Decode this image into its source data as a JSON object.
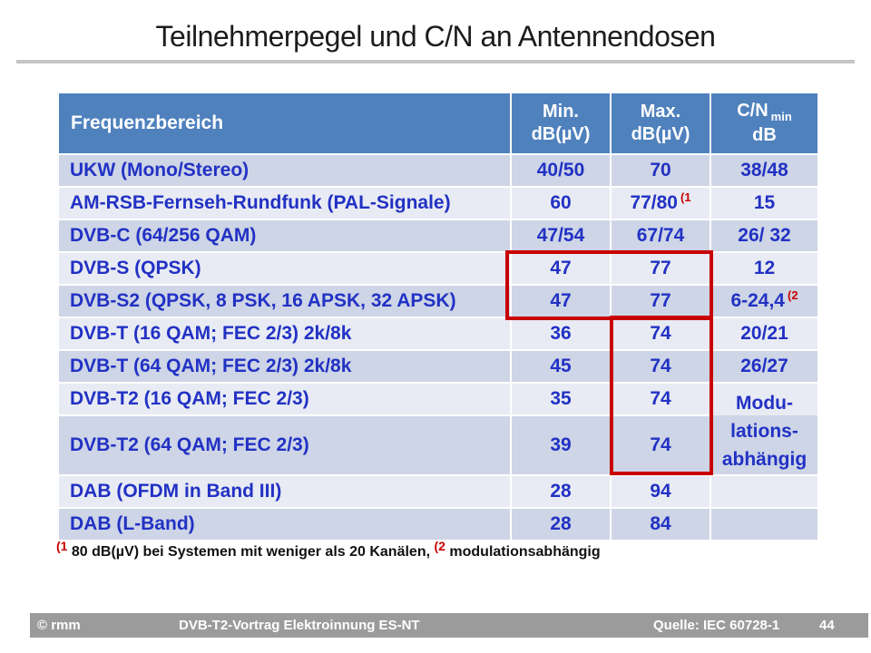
{
  "title": "Teilnehmerpegel und C/N an Antennendosen",
  "table": {
    "headers": {
      "col1": "Frequenzbereich",
      "col2_line1": "Min.",
      "col2_line2": "dB(µV)",
      "col3_line1": "Max.",
      "col3_line2": "dB(µV)",
      "col4_main": "C/N",
      "col4_sub": "min",
      "col4_line2": "dB"
    },
    "rows": [
      {
        "label": "UKW (Mono/Stereo)",
        "min": "40/50",
        "max": "70",
        "cn": "38/48"
      },
      {
        "label": "AM-RSB-Fernseh-Rundfunk (PAL-Signale)",
        "min": "60",
        "max": "77/80",
        "max_note": "(1",
        "cn": "15"
      },
      {
        "label": "DVB-C (64/256 QAM)",
        "min": "47/54",
        "max": "67/74",
        "cn": "26/ 32"
      },
      {
        "label": "DVB-S (QPSK)",
        "min": "47",
        "max": "77",
        "cn": "12"
      },
      {
        "label": "DVB-S2 (QPSK, 8 PSK, 16 APSK, 32 APSK)",
        "min": "47",
        "max": "77",
        "cn": "6-24,4",
        "cn_note": "(2"
      },
      {
        "label": "DVB-T (16 QAM; FEC 2/3) 2k/8k",
        "min": "36",
        "max": "74",
        "cn": "20/21"
      },
      {
        "label": "DVB-T (64 QAM; FEC 2/3) 2k/8k",
        "min": "45",
        "max": "74",
        "cn": "26/27"
      },
      {
        "label": "DVB-T2 (16 QAM; FEC 2/3)",
        "min": "35",
        "max": "74",
        "cn_merged": true,
        "cn_lines": [
          "Modu-",
          "lations-",
          "abhängig"
        ]
      },
      {
        "label": "DVB-T2 (64 QAM; FEC 2/3)",
        "min": "39",
        "max": "74",
        "cn_skip": true
      },
      {
        "label": "DAB (OFDM in Band III)",
        "min": "28",
        "max": "94",
        "cn": ""
      },
      {
        "label": "DAB (L-Band)",
        "min": "28",
        "max": "84",
        "cn": ""
      }
    ]
  },
  "footnote": {
    "marker1": "(1",
    "text1": "80 dB(µV) bei Systemen mit weniger als 20 Kanälen,",
    "marker2": "(2",
    "text2": "modulationsabhängig"
  },
  "footer": {
    "copyright": "© rmm",
    "title": "DVB-T2-Vortrag Elektroinnung ES-NT",
    "source": "Quelle: IEC 60728-1",
    "page": "44"
  },
  "colors": {
    "header_blue": "#4F81BD",
    "band_dark": "#CDD5E6",
    "band_light": "#E8EBF3",
    "text_blue": "#2231C4",
    "accent_red": "#C80000",
    "footer_gray": "#9B9B9B",
    "rule_gray": "#C5C5C5"
  }
}
